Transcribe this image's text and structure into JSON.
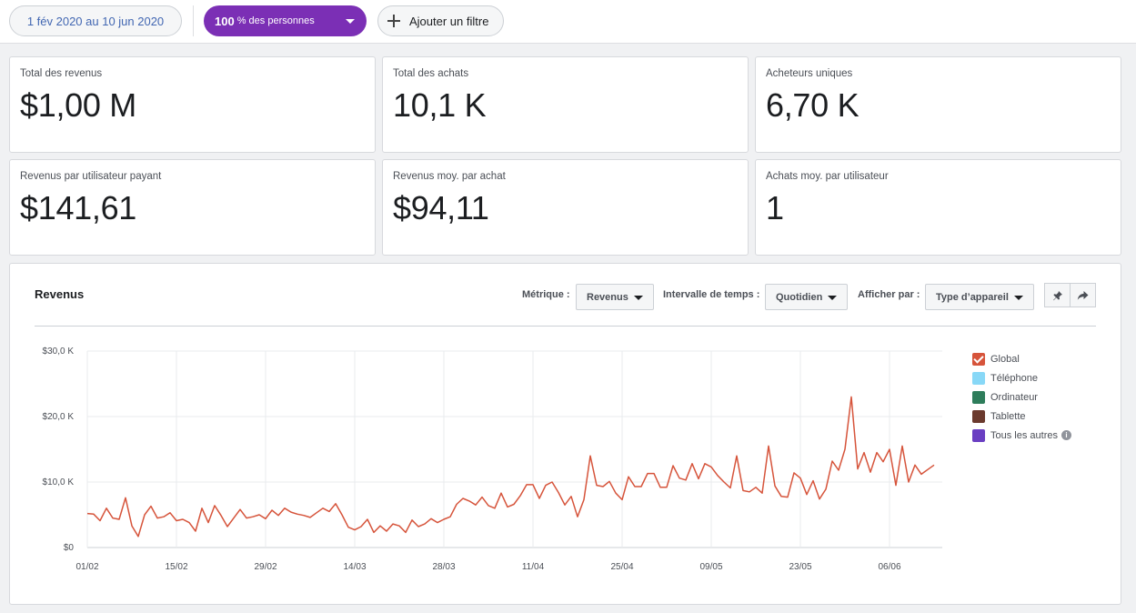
{
  "filters": {
    "date_range": "1 fév 2020 au 10 jun 2020",
    "people_pct": "100",
    "people_suffix": "% des personnes",
    "add_filter": "Ajouter un filtre"
  },
  "metrics": [
    {
      "label": "Total des revenus",
      "value": "$1,00 M"
    },
    {
      "label": "Total des achats",
      "value": "10,1 K"
    },
    {
      "label": "Acheteurs uniques",
      "value": "6,70 K"
    },
    {
      "label": "Revenus par utilisateur payant",
      "value": "$141,61"
    },
    {
      "label": "Revenus moy. par achat",
      "value": "$94,11"
    },
    {
      "label": "Achats moy. par utilisateur",
      "value": "1"
    }
  ],
  "panel": {
    "title": "Revenus",
    "metric_label": "Métrique :",
    "metric_value": "Revenus",
    "interval_label": "Intervalle de temps :",
    "interval_value": "Quotidien",
    "display_label": "Afficher par :",
    "display_value": "Type d’appareil",
    "pin_icon": "pin-icon",
    "share_icon": "share-icon"
  },
  "legend": [
    {
      "label": "Global",
      "color": "#d6543b",
      "checked": true
    },
    {
      "label": "Téléphone",
      "color": "#88d8f7",
      "checked": false
    },
    {
      "label": "Ordinateur",
      "color": "#2e7d5b",
      "checked": false
    },
    {
      "label": "Tablette",
      "color": "#6b3a2e",
      "checked": false
    },
    {
      "label": "Tous les autres",
      "color": "#6a3fc2",
      "checked": false,
      "info": true
    }
  ],
  "chart_data": {
    "type": "line",
    "series": [
      {
        "name": "Global",
        "color": "#d6543b",
        "values": [
          5200,
          5100,
          4100,
          6000,
          4500,
          4300,
          7600,
          3300,
          1700,
          5000,
          6300,
          4500,
          4700,
          5300,
          4100,
          4300,
          3800,
          2500,
          6000,
          3800,
          6400,
          4900,
          3200,
          4500,
          5800,
          4500,
          4700,
          5000,
          4400,
          5700,
          4900,
          6000,
          5400,
          5100,
          4900,
          4600,
          5300,
          6000,
          5500,
          6700,
          5000,
          3100,
          2700,
          3200,
          4300,
          2300,
          3300,
          2500,
          3600,
          3300,
          2300,
          4200,
          3200,
          3600,
          4400,
          3800,
          4300,
          4700,
          6600,
          7500,
          7100,
          6500,
          7700,
          6400,
          6000,
          8300,
          6200,
          6600,
          7900,
          9600,
          9600,
          7500,
          9500,
          10000,
          8400,
          6500,
          7800,
          4700,
          7300,
          14000,
          9500,
          9300,
          10100,
          8300,
          7300,
          10800,
          9300,
          9300,
          11300,
          11300,
          9200,
          9200,
          12500,
          10600,
          10300,
          12800,
          10500,
          12800,
          12300,
          11000,
          10000,
          9100,
          14000,
          8700,
          8500,
          9200,
          8300,
          15500,
          9400,
          7800,
          7700,
          11400,
          10600,
          8100,
          10200,
          7400,
          8900,
          13200,
          11800,
          15000,
          23000,
          12000,
          14500,
          11500,
          14500,
          13100,
          15000,
          9500,
          15500,
          10000,
          12600,
          11200,
          11900,
          12600
        ]
      }
    ],
    "x_ticks": [
      "01/02",
      "15/02",
      "29/02",
      "14/03",
      "28/03",
      "11/04",
      "25/04",
      "09/05",
      "23/05",
      "06/06"
    ],
    "y_ticks": [
      "$0",
      "$10,0 K",
      "$20,0 K",
      "$30,0 K"
    ],
    "ylim": [
      0,
      30000
    ],
    "grid": true,
    "legend_position": "right"
  }
}
